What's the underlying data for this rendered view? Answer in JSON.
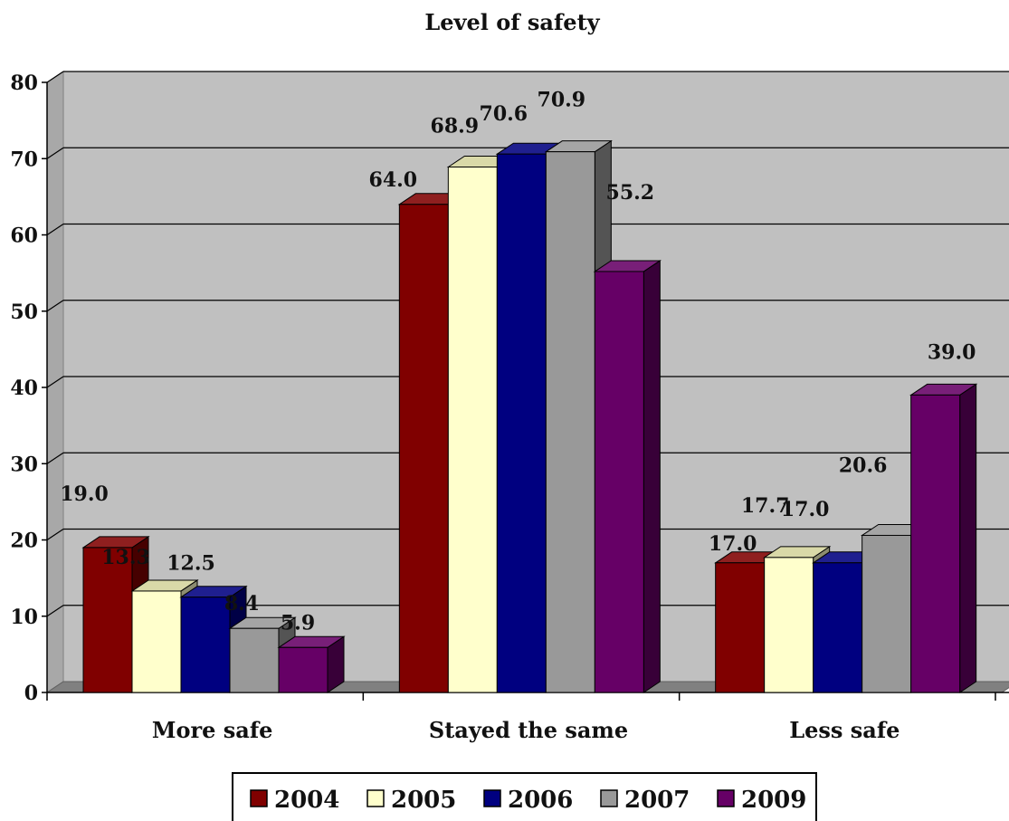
{
  "chart_data": {
    "type": "bar",
    "title": "Level of safety",
    "categories": [
      "More safe",
      "Stayed the same",
      "Less safe"
    ],
    "series": [
      {
        "name": "2004",
        "color": "#800000",
        "values": [
          19.0,
          64.0,
          17.0
        ]
      },
      {
        "name": "2005",
        "color": "#FFFFCC",
        "values": [
          13.3,
          68.9,
          17.7
        ]
      },
      {
        "name": "2006",
        "color": "#000080",
        "values": [
          12.5,
          70.6,
          17.0
        ]
      },
      {
        "name": "2007",
        "color": "#999999",
        "values": [
          8.4,
          70.9,
          20.6
        ]
      },
      {
        "name": "2009",
        "color": "#660066",
        "values": [
          5.9,
          55.2,
          39.0
        ]
      }
    ],
    "data_labels": [
      [
        "19.0",
        "64.0",
        "17.0"
      ],
      [
        "13.3",
        "68.9",
        "17.7"
      ],
      [
        "12.5",
        "70.6",
        "17.0"
      ],
      [
        "8.4",
        "70.9",
        "20.6"
      ],
      [
        "5.9",
        "55.2",
        "39.0"
      ]
    ],
    "ylim": [
      0,
      80
    ],
    "yticks": [
      "0",
      "10",
      "20",
      "30",
      "40",
      "50",
      "60",
      "70",
      "80"
    ],
    "grid": true,
    "legend_position": "bottom",
    "style": "3d-clustered-column",
    "plot_background": "#C0C0C0"
  }
}
